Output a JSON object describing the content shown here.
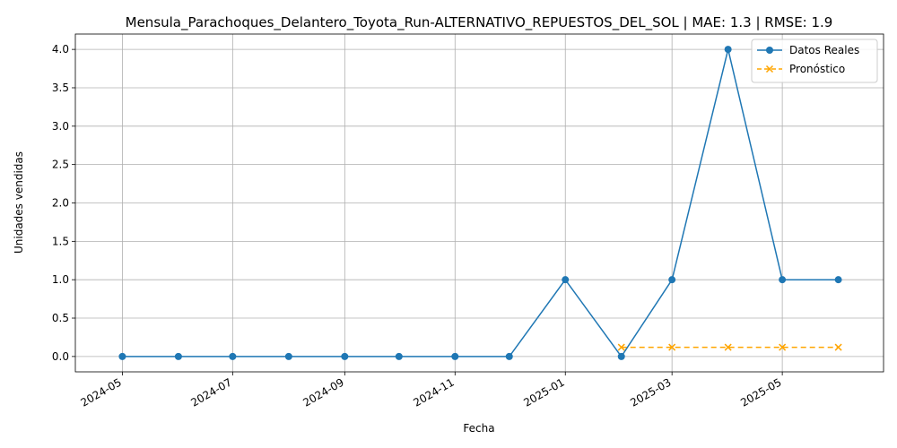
{
  "chart_data": {
    "type": "line",
    "title": "Mensula_Parachoques_Delantero_Toyota_Run-ALTERNATIVO_REPUESTOS_DEL_SOL | MAE: 1.3 | RMSE: 1.9",
    "xlabel": "Fecha",
    "ylabel": "Unidades vendidas",
    "x_ticks": [
      "2024-05",
      "2024-07",
      "2024-09",
      "2024-11",
      "2025-01",
      "2025-03",
      "2025-05"
    ],
    "y_ticks": [
      "0.0",
      "0.5",
      "1.0",
      "1.5",
      "2.0",
      "2.5",
      "3.0",
      "3.5",
      "4.0"
    ],
    "xlim": [
      "2024-04-05",
      "2025-06-26"
    ],
    "ylim": [
      -0.2,
      4.2
    ],
    "grid": true,
    "legend_position": "top-right",
    "series": [
      {
        "name": "Datos Reales",
        "color": "#1f77b4",
        "marker": "circle",
        "linestyle": "solid",
        "x": [
          "2024-05-01",
          "2024-06-01",
          "2024-07-01",
          "2024-08-01",
          "2024-09-01",
          "2024-10-01",
          "2024-11-01",
          "2024-12-01",
          "2025-01-01",
          "2025-02-01",
          "2025-03-01",
          "2025-04-01",
          "2025-05-01",
          "2025-06-01"
        ],
        "values": [
          0,
          0,
          0,
          0,
          0,
          0,
          0,
          0,
          1,
          0,
          1,
          4,
          1,
          1
        ]
      },
      {
        "name": "Pronóstico",
        "color": "#ffa500",
        "marker": "x",
        "linestyle": "dashed",
        "x": [
          "2025-02-01",
          "2025-03-01",
          "2025-04-01",
          "2025-05-01",
          "2025-06-01"
        ],
        "values": [
          0.12,
          0.12,
          0.12,
          0.12,
          0.12
        ]
      }
    ]
  }
}
